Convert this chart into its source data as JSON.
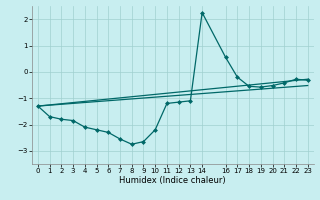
{
  "xlabel": "Humidex (Indice chaleur)",
  "bg_color": "#c8eef0",
  "line_color": "#006868",
  "grid_color": "#a0d0d0",
  "xlim": [
    -0.5,
    23.5
  ],
  "ylim": [
    -3.5,
    2.5
  ],
  "yticks": [
    -3,
    -2,
    -1,
    0,
    1,
    2
  ],
  "xticks": [
    0,
    1,
    2,
    3,
    4,
    5,
    6,
    7,
    8,
    9,
    10,
    11,
    12,
    13,
    14,
    16,
    17,
    18,
    19,
    20,
    21,
    22,
    23
  ],
  "main_x": [
    0,
    1,
    2,
    3,
    4,
    5,
    6,
    7,
    8,
    9,
    10,
    11,
    12,
    13,
    14,
    16,
    17,
    18,
    19,
    20,
    21,
    22,
    23
  ],
  "main_y": [
    -1.3,
    -1.7,
    -1.8,
    -1.85,
    -2.1,
    -2.2,
    -2.3,
    -2.55,
    -2.75,
    -2.65,
    -2.2,
    -1.2,
    -1.15,
    -1.1,
    2.25,
    0.55,
    -0.2,
    -0.55,
    -0.58,
    -0.52,
    -0.42,
    -0.28,
    -0.32
  ],
  "trend1_x": [
    0,
    23
  ],
  "trend1_y": [
    -1.3,
    -0.28
  ],
  "trend2_x": [
    0,
    23
  ],
  "trend2_y": [
    -1.3,
    -0.52
  ],
  "xlabel_fontsize": 6,
  "tick_fontsize": 5,
  "linewidth": 0.9,
  "markersize": 2.5
}
